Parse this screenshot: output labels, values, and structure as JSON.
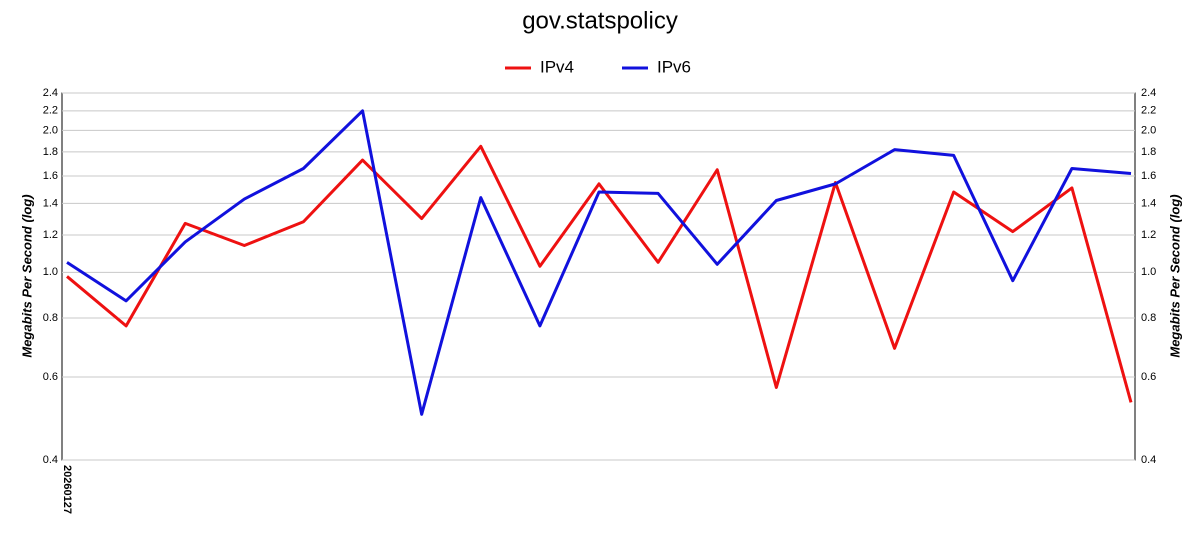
{
  "chart_data": {
    "type": "line",
    "title": "gov.statspolicy",
    "y_label": "Megabits Per Second (log)",
    "log_scale": true,
    "grid": true,
    "categories": [
      "20260127",
      null,
      null,
      null,
      null,
      null,
      null,
      null,
      null,
      null,
      null,
      null,
      null,
      null,
      null,
      null,
      null,
      null,
      null
    ],
    "series": [
      {
        "name": "IPv4",
        "color": "#ee1111",
        "values": [
          0.98,
          0.77,
          1.27,
          1.14,
          1.28,
          1.73,
          1.3,
          1.85,
          1.03,
          1.54,
          1.05,
          1.65,
          0.57,
          1.55,
          0.69,
          1.48,
          1.22,
          1.51,
          0.53
        ]
      },
      {
        "name": "IPv6",
        "color": "#1111dd",
        "values": [
          1.05,
          0.87,
          1.16,
          1.43,
          1.66,
          2.2,
          0.5,
          1.44,
          0.77,
          1.48,
          1.47,
          1.04,
          1.42,
          1.54,
          1.82,
          1.77,
          0.96,
          1.66,
          1.62
        ]
      }
    ],
    "ylim": [
      0.4,
      2.4
    ],
    "yticks": [
      0.4,
      0.6,
      0.8,
      {
        "value": 1,
        "label": "1.0"
      },
      1.2,
      1.4,
      1.6,
      1.8,
      {
        "value": 2,
        "label": "2.0"
      },
      2.2,
      2.4
    ]
  }
}
